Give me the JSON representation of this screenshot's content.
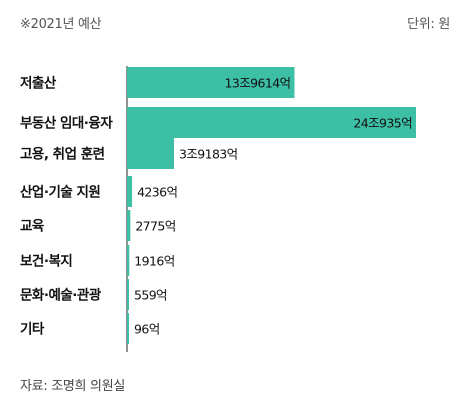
{
  "header": {
    "note": "※2021년 예산",
    "unit": "단위: 원"
  },
  "source": "자료: 조명희 의원실",
  "colors": {
    "bar": "#3dbfa6",
    "axis": "#222222"
  },
  "chart_data": {
    "type": "bar",
    "orientation": "horizontal",
    "categories": [
      "저출산",
      "부동산 임대·융자",
      "고용, 취업 훈련",
      "산업·기술 지원",
      "교육",
      "보건·복지",
      "문화·예술·관광",
      "기타"
    ],
    "values": [
      139614,
      240935,
      39183,
      4236,
      2775,
      1916,
      559,
      96
    ],
    "value_unit": "억원",
    "value_labels": [
      "13조9614억",
      "24조935억",
      "3조9183억",
      "4236억",
      "2775억",
      "1916억",
      "559억",
      "96억"
    ],
    "label_position": [
      "inside",
      "inside",
      "outside",
      "outside",
      "outside",
      "outside",
      "outside",
      "outside"
    ],
    "xlim": [
      0,
      250000
    ],
    "grid": false,
    "legend": "none"
  }
}
